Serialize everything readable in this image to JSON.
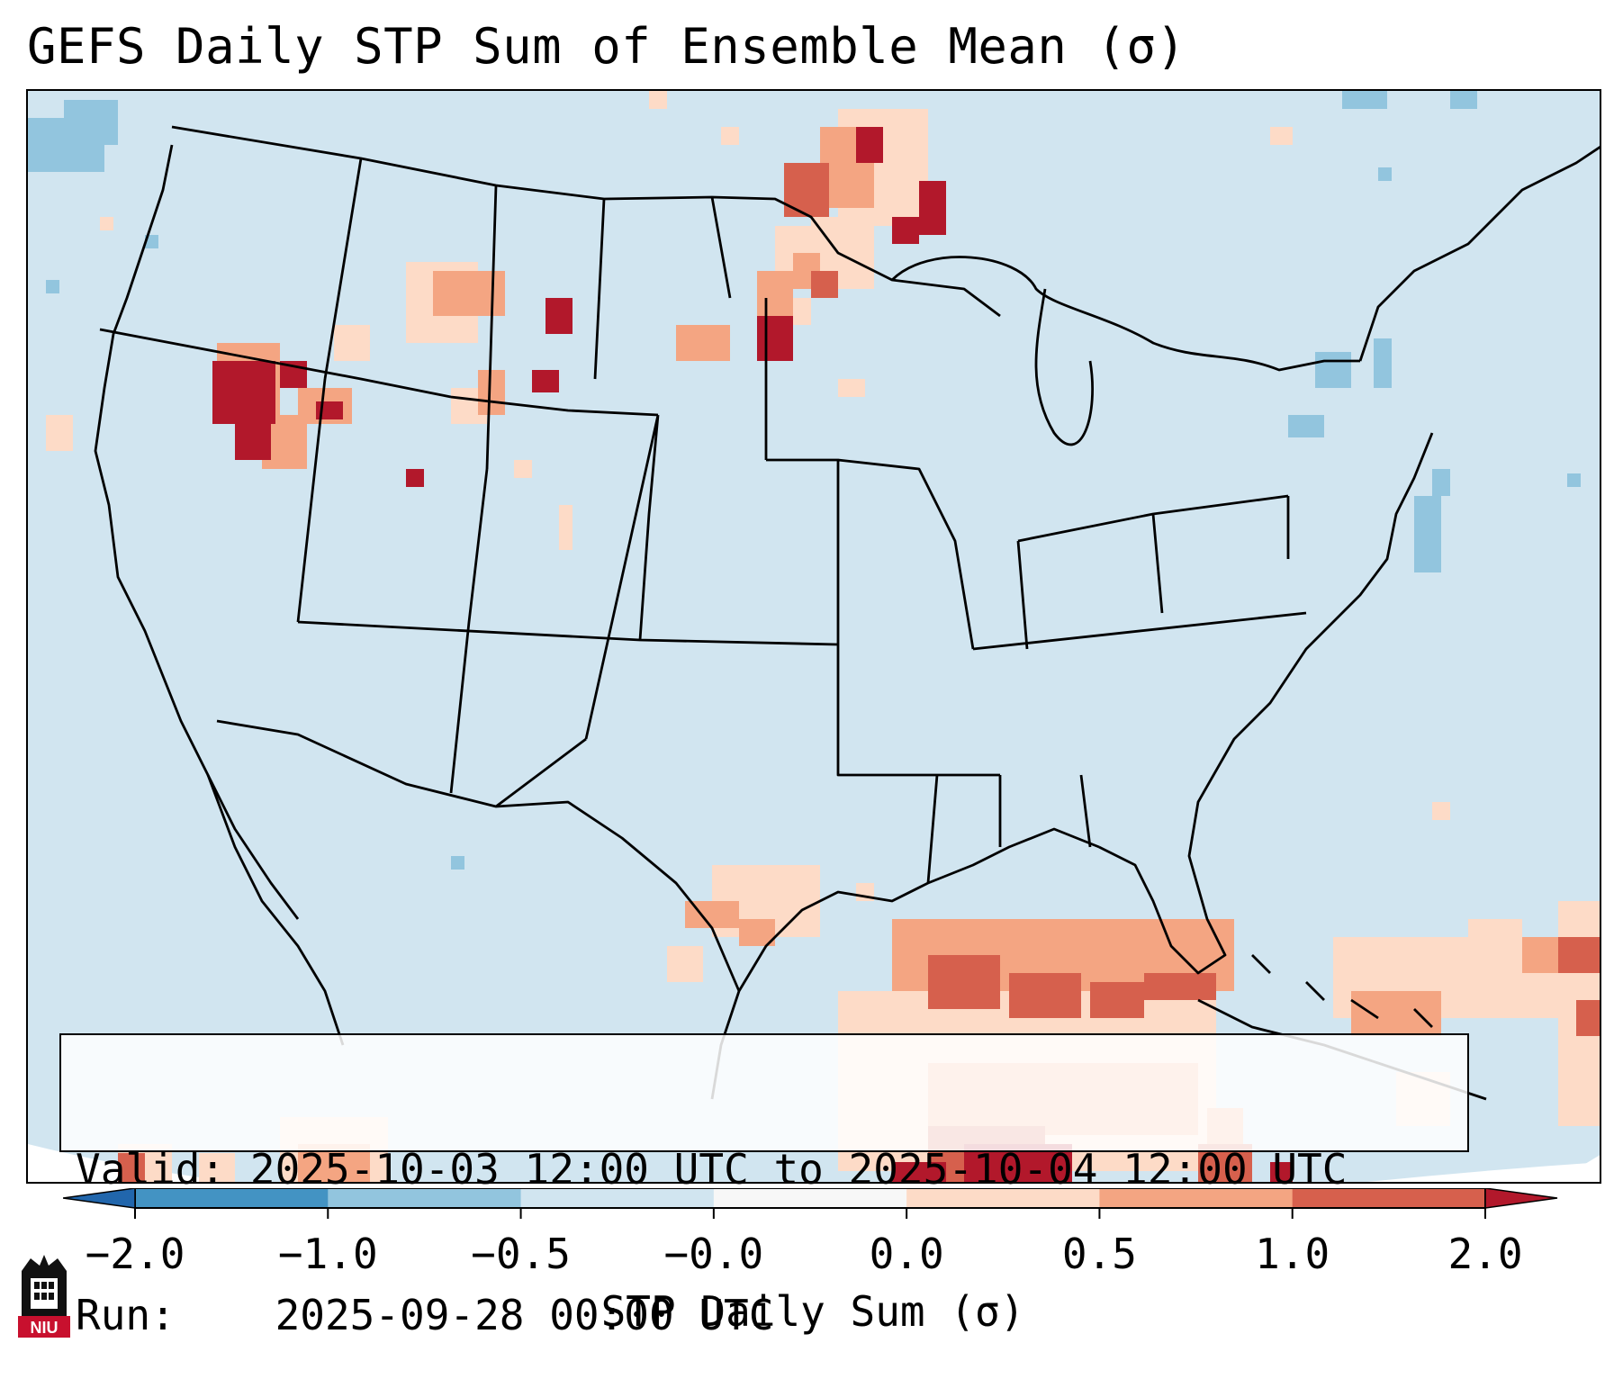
{
  "title": "GEFS Daily STP Sum of Ensemble Mean (σ)",
  "info": {
    "valid_label": "Valid:",
    "valid_value": "2025-10-03 12:00 UTC to 2025-10-04 12:00 UTC",
    "run_label": "Run:",
    "run_value": "2025-09-28 00:00 UTC"
  },
  "colorbar": {
    "label": "STP Daily Sum (σ)",
    "ticks": [
      "−2.0",
      "−1.0",
      "−0.5",
      "−0.0",
      "0.0",
      "0.5",
      "1.0",
      "2.0"
    ],
    "colors": [
      "#2166ac",
      "#4393c3",
      "#92c5de",
      "#d1e5f0",
      "#fddbc7",
      "#f4a582",
      "#d6604d",
      "#b2182b"
    ],
    "under_color": "#2166ac",
    "over_color": "#b2182b"
  },
  "map": {
    "background_color": "#d1e5f0",
    "land_line_color": "#000000"
  },
  "logo": {
    "text": "NIU"
  }
}
